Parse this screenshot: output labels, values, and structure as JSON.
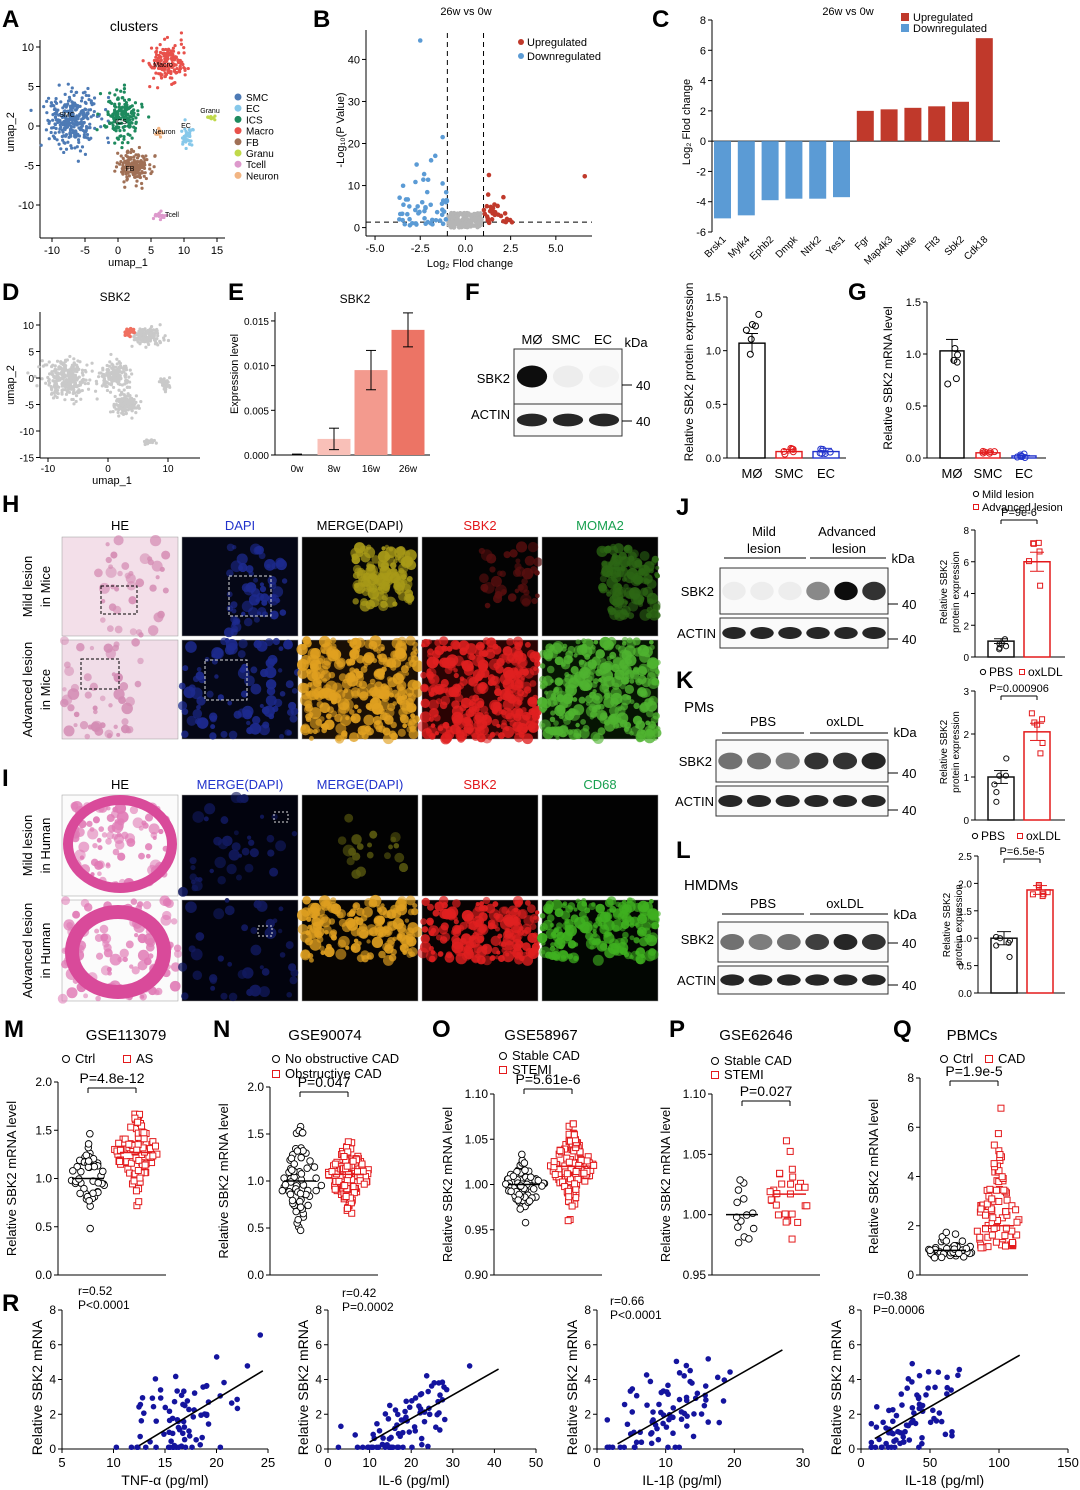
{
  "figure": {
    "umap_palette": {
      "SMC": "#4d7ab5",
      "EC": "#86c8ea",
      "ICS": "#1e8a5e",
      "Macro": "#e8514b",
      "FB": "#a07056",
      "Granu": "#c0d94a",
      "Tcell": "#dd99cc",
      "Neuron": "#f2b583"
    },
    "colors": {
      "upregulated": "#c0392b",
      "downregulated": "#5b9bd5",
      "mild": "#111111",
      "advanced": "#e31a1c",
      "scatter": "#14149e"
    }
  },
  "panels": {
    "A": {
      "letter": "A"
    },
    "B": {
      "letter": "B"
    },
    "C": {
      "letter": "C"
    },
    "D": {
      "letter": "D"
    },
    "E": {
      "letter": "E"
    },
    "F": {
      "letter": "F"
    },
    "G": {
      "letter": "G"
    },
    "H": {
      "letter": "H"
    },
    "I": {
      "letter": "I"
    },
    "J": {
      "letter": "J"
    },
    "K": {
      "letter": "K"
    },
    "L": {
      "letter": "L"
    },
    "M": {
      "letter": "M"
    },
    "N": {
      "letter": "N"
    },
    "O": {
      "letter": "O"
    },
    "P": {
      "letter": "P"
    },
    "Q": {
      "letter": "Q"
    },
    "R": {
      "letter": "R"
    }
  },
  "chart_data": [
    {
      "panel": "A",
      "type": "scatter",
      "title": "clusters",
      "xlabel": "umap_1",
      "ylabel": "umap_2",
      "xticks": [
        "-10",
        "-5",
        "0",
        "5",
        "10",
        "15"
      ],
      "yticks": [
        "10",
        "5",
        "0",
        "-5",
        "-10"
      ],
      "legend": [
        "SMC",
        "EC",
        "ICS",
        "Macro",
        "FB",
        "Granu",
        "Tcell",
        "Neuron"
      ],
      "cluster_labels": [
        "Macro",
        "SMC",
        "ICS",
        "Neuron",
        "EC",
        "Granu",
        "FB",
        "Tcell"
      ]
    },
    {
      "panel": "B",
      "type": "scatter",
      "title": "26w vs 0w",
      "xlabel": "Log₂ Flod change",
      "ylabel": "-Log₁₀(P Value)",
      "xticks": [
        "-5.0",
        "-2.5",
        "0.0",
        "2.5",
        "5.0"
      ],
      "yticks": [
        "0",
        "10",
        "20",
        "30",
        "40"
      ],
      "xlim": [
        -5.5,
        7
      ],
      "ylim": [
        -2,
        47
      ],
      "legend": [
        "Upregulated",
        "Downregulated"
      ],
      "thresholds": {
        "x": [
          -1,
          1
        ],
        "y": 1.3
      }
    },
    {
      "panel": "C",
      "type": "bar",
      "title": "26w vs 0w",
      "ylabel": "Log₂ Flod change",
      "yticks": [
        "8",
        "6",
        "4",
        "2",
        "0",
        "-2",
        "-4",
        "-6"
      ],
      "ylim": [
        -6,
        8
      ],
      "legend": [
        "Upregulated",
        "Downregulated"
      ],
      "categories": [
        "Brsk1",
        "Mylk4",
        "Ephb2",
        "Dmpk",
        "Ntrk2",
        "Yes1",
        "Fgr",
        "Map4k3",
        "Ikbke",
        "Flt3",
        "Sbk2",
        "Cdk18"
      ],
      "values": [
        -5.1,
        -4.9,
        -3.9,
        -3.8,
        -3.8,
        -3.7,
        2.0,
        2.1,
        2.2,
        2.3,
        2.6,
        6.8
      ]
    },
    {
      "panel": "D",
      "type": "scatter",
      "title": "SBK2",
      "xlabel": "umap_1",
      "ylabel": "umap_2",
      "xticks": [
        "-10",
        "0",
        "10"
      ],
      "yticks": [
        "10",
        "5",
        "0",
        "-5",
        "-10",
        "-15"
      ]
    },
    {
      "panel": "E",
      "type": "bar",
      "title": "SBK2",
      "ylabel": "Expression level",
      "yticks": [
        "0.015",
        "0.010",
        "0.005",
        "0.000"
      ],
      "ylim": [
        0,
        0.016
      ],
      "categories": [
        "0w",
        "8w",
        "16w",
        "26w"
      ],
      "values": [
        0.0,
        0.0018,
        0.0095,
        0.014
      ],
      "errors": [
        0.0001,
        0.0012,
        0.0022,
        0.0019
      ]
    },
    {
      "panel": "F",
      "type": "bar",
      "ylabel": "Relative SBK2 protein expression",
      "yticks": [
        "1.5",
        "1.0",
        "0.5",
        "0.0"
      ],
      "ylim": [
        0,
        1.5
      ],
      "categories": [
        "MØ",
        "SMC",
        "EC"
      ],
      "values": [
        1.07,
        0.06,
        0.06
      ],
      "errors": [
        0.09,
        0.02,
        0.03
      ],
      "blot": {
        "lanes": [
          "MØ",
          "SMC",
          "EC"
        ],
        "unit": "kDa",
        "rows": [
          "SBK2",
          "ACTIN"
        ],
        "marks": [
          "40",
          "40"
        ]
      }
    },
    {
      "panel": "G",
      "type": "bar",
      "ylabel": "Relative SBK2 mRNA level",
      "yticks": [
        "1.5",
        "1.0",
        "0.5",
        "0.0"
      ],
      "ylim": [
        0,
        1.5
      ],
      "categories": [
        "MØ",
        "SMC",
        "EC"
      ],
      "values": [
        1.03,
        0.05,
        0.02
      ],
      "errors": [
        0.11,
        0.01,
        0.005
      ]
    },
    {
      "panel": "H",
      "type": "table",
      "columns": [
        "HE",
        "DAPI",
        "MERGE(DAPI)",
        "SBK2",
        "MOMA2"
      ],
      "rows": [
        "Mild lesion in Mice",
        "Advanced lesion in Mice"
      ]
    },
    {
      "panel": "I",
      "type": "table",
      "columns": [
        "HE",
        "MERGE(DAPI)",
        "MERGE(DAPI)",
        "SBK2",
        "CD68"
      ],
      "rows": [
        "Mild lesion in Human",
        "Advanced lesion in Human"
      ]
    },
    {
      "panel": "J",
      "type": "bar",
      "ylabel": "Relative SBK2 protein expression",
      "yticks": [
        "8",
        "6",
        "4",
        "2",
        "0"
      ],
      "ylim": [
        0,
        8
      ],
      "legend": [
        "Mild lesion",
        "Advanced lesion"
      ],
      "categories": [
        "Mild lesion",
        "Advanced lesion"
      ],
      "values": [
        1.0,
        6.0
      ],
      "errors": [
        0.15,
        0.6
      ],
      "pvalue": "P=9e-6",
      "blot": {
        "groups": [
          "Mild lesion",
          "Advanced lesion"
        ],
        "unit": "kDa",
        "rows": [
          "SBK2",
          "ACTIN"
        ],
        "marks": [
          "40",
          "40"
        ]
      }
    },
    {
      "panel": "K",
      "type": "bar",
      "subtitle": "PMs",
      "ylabel": "Relative SBK2 protein expression",
      "yticks": [
        "3",
        "2",
        "1",
        "0"
      ],
      "ylim": [
        0,
        3
      ],
      "legend": [
        "PBS",
        "oxLDL"
      ],
      "categories": [
        "PBS",
        "oxLDL"
      ],
      "values": [
        1.0,
        2.05
      ],
      "errors": [
        0.15,
        0.2
      ],
      "pvalue": "P=0.000906",
      "blot": {
        "groups": [
          "PBS",
          "oxLDL"
        ],
        "unit": "kDa",
        "rows": [
          "SBK2",
          "ACTIN"
        ],
        "marks": [
          "40",
          "40"
        ]
      }
    },
    {
      "panel": "L",
      "type": "bar",
      "subtitle": "HMDMs",
      "ylabel": "Relative SBK2 protein expression",
      "yticks": [
        "2.5",
        "2.0",
        "1.5",
        "1.0",
        "0.5",
        "0.0"
      ],
      "ylim": [
        0,
        2.5
      ],
      "legend": [
        "PBS",
        "oxLDL"
      ],
      "categories": [
        "PBS",
        "oxLDL"
      ],
      "values": [
        1.0,
        1.88
      ],
      "errors": [
        0.12,
        0.08
      ],
      "pvalue": "P=6.5e-5",
      "blot": {
        "groups": [
          "PBS",
          "oxLDL"
        ],
        "unit": "kDa",
        "rows": [
          "SBK2",
          "ACTIN"
        ],
        "marks": [
          "40",
          "40"
        ]
      }
    },
    {
      "panel": "M",
      "type": "scatter",
      "title": "GSE113079",
      "ylabel": "Relative SBK2 mRNA level",
      "yticks": [
        "2.0",
        "1.5",
        "1.0",
        "0.5",
        "0.0"
      ],
      "ylim": [
        0,
        2
      ],
      "legend": [
        "Ctrl",
        "AS"
      ],
      "groups": [
        {
          "name": "Ctrl",
          "mean": 1.0,
          "sd": 0.16,
          "n": 50
        },
        {
          "name": "AS",
          "mean": 1.27,
          "sd": 0.2,
          "n": 90
        }
      ],
      "pvalue": "P=4.8e-12"
    },
    {
      "panel": "N",
      "type": "scatter",
      "title": "GSE90074",
      "ylabel": "Relative SBK2 mRNA level",
      "yticks": [
        "2.0",
        "1.5",
        "1.0",
        "0.5",
        "0.0"
      ],
      "ylim": [
        0,
        2
      ],
      "legend": [
        "No obstructive CAD",
        "Obstructive CAD"
      ],
      "groups": [
        {
          "name": "No obstructive CAD",
          "mean": 1.0,
          "sd": 0.24,
          "n": 60
        },
        {
          "name": "Obstructive CAD",
          "mean": 1.07,
          "sd": 0.18,
          "n": 120
        }
      ],
      "pvalue": "P=0.047"
    },
    {
      "panel": "O",
      "type": "scatter",
      "title": "GSE58967",
      "ylabel": "Relative SBK2 mRNA level",
      "yticks": [
        "1.10",
        "1.05",
        "1.00",
        "0.95",
        "0.90"
      ],
      "ylim": [
        0.9,
        1.1
      ],
      "legend": [
        "Stable CAD",
        "STEMI"
      ],
      "groups": [
        {
          "name": "Stable CAD",
          "mean": 1.0,
          "sd": 0.015,
          "n": 60
        },
        {
          "name": "STEMI",
          "mean": 1.02,
          "sd": 0.02,
          "n": 130
        }
      ],
      "pvalue": "P=5.61e-6"
    },
    {
      "panel": "P",
      "type": "scatter",
      "title": "GSE62646",
      "ylabel": "Relative SBK2 mRNA level",
      "yticks": [
        "1.10",
        "1.05",
        "1.00",
        "0.95"
      ],
      "ylim": [
        0.95,
        1.1
      ],
      "legend": [
        "Stable CAD",
        "STEMI"
      ],
      "groups": [
        {
          "name": "Stable CAD",
          "mean": 1.0,
          "sd": 0.016,
          "n": 14
        },
        {
          "name": "STEMI",
          "mean": 1.017,
          "sd": 0.02,
          "n": 28
        }
      ],
      "pvalue": "P=0.027"
    },
    {
      "panel": "Q",
      "type": "scatter",
      "title": "PBMCs",
      "ylabel": "Relative SBK2 mRNA level",
      "yticks": [
        "8",
        "6",
        "4",
        "2",
        "0"
      ],
      "ylim": [
        0,
        8
      ],
      "legend": [
        "Ctrl",
        "CAD"
      ],
      "groups": [
        {
          "name": "Ctrl",
          "mean": 1.0,
          "sd": 0.5,
          "n": 40
        },
        {
          "name": "CAD",
          "mean": 2.0,
          "sd": 1.5,
          "n": 80
        }
      ],
      "pvalue": "P=1.9e-5"
    },
    {
      "panel": "R1",
      "type": "scatter",
      "xlabel": "TNF-α (pg/ml)",
      "ylabel": "Relative SBK2 mRNA",
      "xticks": [
        "5",
        "10",
        "15",
        "20",
        "25"
      ],
      "yticks": [
        "0",
        "2",
        "4",
        "6",
        "8"
      ],
      "xlim": [
        5,
        25
      ],
      "ylim": [
        0,
        8
      ],
      "stats": [
        "r=0.52",
        "P<0.0001"
      ],
      "fit": [
        [
          12.5,
          0.2
        ],
        [
          24.5,
          4.5
        ]
      ],
      "cloud": {
        "xmean": 16.5,
        "xsd": 2.6,
        "n": 80
      }
    },
    {
      "panel": "R2",
      "type": "scatter",
      "xlabel": "IL-6 (pg/ml)",
      "ylabel": "Relative SBK2 mRNA",
      "xticks": [
        "0",
        "10",
        "20",
        "30",
        "40",
        "50"
      ],
      "yticks": [
        "0",
        "2",
        "4",
        "6",
        "8"
      ],
      "xlim": [
        0,
        50
      ],
      "ylim": [
        0,
        8
      ],
      "stats": [
        "r=0.42",
        "P=0.0002"
      ],
      "fit": [
        [
          10,
          0.4
        ],
        [
          41,
          4.6
        ]
      ],
      "cloud": {
        "xmean": 20,
        "xsd": 7,
        "n": 80
      }
    },
    {
      "panel": "R3",
      "type": "scatter",
      "xlabel": "IL-1β (pg/ml)",
      "ylabel": "Relative SBK2 mRNA",
      "xticks": [
        "0",
        "10",
        "20",
        "30"
      ],
      "yticks": [
        "0",
        "2",
        "4",
        "6",
        "8"
      ],
      "xlim": [
        0,
        30
      ],
      "ylim": [
        0,
        8
      ],
      "stats": [
        "r=0.66",
        "P<0.0001"
      ],
      "fit": [
        [
          3,
          0.3
        ],
        [
          27,
          5.7
        ]
      ],
      "cloud": {
        "xmean": 11,
        "xsd": 5,
        "n": 80
      }
    },
    {
      "panel": "R4",
      "type": "scatter",
      "xlabel": "IL-18 (pg/ml)",
      "ylabel": "Relative SBK2 mRNA",
      "xticks": [
        "0",
        "50",
        "100",
        "150"
      ],
      "yticks": [
        "0",
        "2",
        "4",
        "6",
        "8"
      ],
      "xlim": [
        0,
        150
      ],
      "ylim": [
        0,
        8
      ],
      "stats": [
        "r=0.38",
        "P=0.0006"
      ],
      "fit": [
        [
          10,
          0.6
        ],
        [
          115,
          5.4
        ]
      ],
      "cloud": {
        "xmean": 35,
        "xsd": 20,
        "n": 80
      }
    }
  ]
}
